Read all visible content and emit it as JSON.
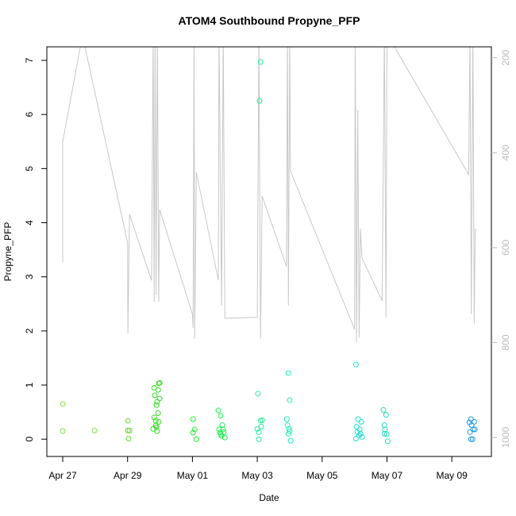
{
  "chart_data": {
    "type": "scatter",
    "title": "ATOM4 Southbound Propyne_PFP",
    "xlabel": "Date",
    "ylabel": "Propyne_PFP",
    "xlim": [
      -0.49,
      13.22
    ],
    "xticks": [
      {
        "value": 0,
        "label": "Apr 27"
      },
      {
        "value": 2,
        "label": "Apr 29"
      },
      {
        "value": 4,
        "label": "May 01"
      },
      {
        "value": 6,
        "label": "May 03"
      },
      {
        "value": 8,
        "label": "May 05"
      },
      {
        "value": 10,
        "label": "May 07"
      },
      {
        "value": 12,
        "label": "May 09"
      }
    ],
    "ylim": [
      -0.32,
      7.25
    ],
    "yticks": [
      0,
      1,
      2,
      3,
      4,
      5,
      6,
      7
    ],
    "y2lim": [
      1040,
      177
    ],
    "y2ticks": [
      200,
      400,
      600,
      800,
      1000
    ],
    "series": [
      {
        "color": "#88dd44",
        "x": [
          0,
          0,
          0.98
        ],
        "values": [
          0.65,
          0.15,
          0.16
        ]
      },
      {
        "color": "#66dd33",
        "x": [
          2.01,
          2.01,
          2.03,
          2.06
        ],
        "values": [
          0.34,
          0.16,
          0.01,
          0.16
        ]
      },
      {
        "color": "#33dd22",
        "x": [
          2.79,
          2.82,
          2.84,
          2.82,
          2.87,
          2.89,
          2.91,
          2.94,
          2.96,
          2.99,
          2.94,
          2.96,
          2.91,
          2.89,
          2.99,
          2.87
        ],
        "values": [
          0.19,
          0.4,
          0.81,
          0.95,
          0.34,
          0.63,
          0.69,
          0.91,
          1.03,
          1.04,
          0.48,
          0.32,
          0.15,
          0.22,
          0.75,
          0.25
        ]
      },
      {
        "color": "#22ee33",
        "x": [
          4.02,
          4.07,
          4.12,
          4.02
        ],
        "values": [
          0.37,
          0.18,
          0,
          0.12
        ]
      },
      {
        "color": "#22ee55",
        "x": [
          4.8,
          4.87,
          4.92,
          4.85,
          4.9,
          4.95,
          5.0,
          4.82,
          4.87,
          4.97
        ],
        "values": [
          0.53,
          0.43,
          0.26,
          0.12,
          0.06,
          0.18,
          0.03,
          0.18,
          0.09,
          0.13
        ]
      },
      {
        "color": "#22ee99",
        "x": [
          6.02,
          6.1,
          6.07,
          6.1,
          6.15,
          6.05,
          6.0,
          6.05,
          6.12
        ],
        "values": [
          0.84,
          6.97,
          6.25,
          0.34,
          0.35,
          0.13,
          0.19,
          0,
          0.23
        ]
      },
      {
        "color": "#22eebb",
        "x": [
          6.96,
          7.0,
          6.91,
          6.93,
          6.98,
          7.0,
          6.96,
          7.03
        ],
        "values": [
          1.22,
          0.72,
          0.37,
          0.26,
          0.19,
          0.15,
          0.1,
          -0.03
        ]
      },
      {
        "color": "#22ddcc",
        "x": [
          9.04,
          9.11,
          9.21,
          9.06,
          9.09,
          9.14,
          9.18,
          9.23,
          9.04,
          9.16
        ],
        "values": [
          1.38,
          0.37,
          0.32,
          0.23,
          0.13,
          0.07,
          0.1,
          0.04,
          0.01,
          0.18
        ]
      },
      {
        "color": "#22ddbb",
        "x": [
          9.89,
          9.97,
          9.92,
          9.94,
          9.99,
          10.02,
          9.92
        ],
        "values": [
          0.54,
          0.45,
          0.26,
          0.18,
          0.09,
          -0.04,
          0.1
        ]
      },
      {
        "color": "#2299ee",
        "x": [
          12.59,
          12.54,
          12.61,
          12.69,
          12.66,
          12.56,
          12.71,
          12.59,
          12.64
        ],
        "values": [
          0.37,
          0.31,
          0.26,
          0.32,
          0.18,
          0.13,
          0.18,
          0,
          0
        ]
      },
      {
        "type": "line",
        "axis": "y2",
        "color": "#c8c8c8",
        "x": [
          0,
          0,
          0.61,
          2.0,
          2.01,
          2.06,
          2.74,
          2.79,
          2.82,
          2.85,
          2.88,
          2.92,
          2.96,
          2.99,
          4.0,
          4.02,
          4.05,
          4.07,
          4.12,
          4.8,
          4.82,
          4.9,
          4.95,
          5.0,
          6.0,
          6.05,
          6.1,
          6.15,
          6.9,
          6.93,
          6.96,
          7.0,
          7.02,
          9.0,
          9.02,
          9.06,
          9.1,
          9.14,
          9.18,
          9.23,
          9.85,
          9.92,
          9.97,
          10.0,
          12.52,
          12.56,
          12.6,
          12.65,
          12.69,
          12.72
        ],
        "values": [
          630,
          376,
          153,
          590,
          781,
          530,
          669,
          150,
          714,
          150,
          700,
          150,
          714,
          520,
          740,
          769,
          150,
          792,
          441,
          669,
          150,
          722,
          150,
          749,
          747,
          150,
          792,
          491,
          640,
          150,
          722,
          150,
          438,
          772,
          150,
          800,
          310,
          790,
          560,
          622,
          712,
          150,
          747,
          150,
          446,
          150,
          740,
          150,
          760,
          560
        ]
      }
    ]
  }
}
